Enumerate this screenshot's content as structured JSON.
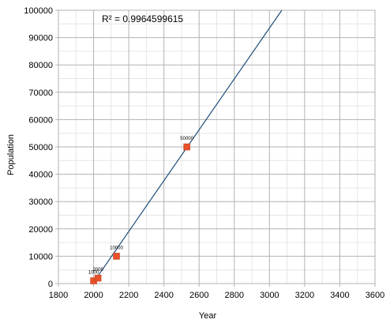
{
  "chart_data": {
    "type": "scatter",
    "xlabel": "Year",
    "ylabel": "Population",
    "xlim": [
      1800,
      3600
    ],
    "ylim": [
      0,
      100000
    ],
    "x_ticks": [
      "1800",
      "2000",
      "2200",
      "2400",
      "2600",
      "2800",
      "3000",
      "3200",
      "3400",
      "3600"
    ],
    "y_ticks": [
      "0",
      "10000",
      "20000",
      "30000",
      "40000",
      "50000",
      "60000",
      "70000",
      "80000",
      "90000",
      "100000"
    ],
    "grid": true,
    "series": [
      {
        "points": [
          {
            "x": 2000,
            "y": 1000,
            "label": "1000"
          },
          {
            "x": 2025,
            "y": 2000,
            "label": "2000"
          },
          {
            "x": 2130,
            "y": 10000,
            "label": "10000"
          },
          {
            "x": 2530,
            "y": 50000,
            "label": "50000"
          }
        ],
        "marker_color": "#E8502A"
      }
    ],
    "trendline": {
      "type": "linear",
      "color": "#1F4E79",
      "from": {
        "x": 1995,
        "y": 0
      },
      "to": {
        "x": 3070,
        "y": 100000
      }
    },
    "annotation": "R² = 0.9964599615"
  }
}
